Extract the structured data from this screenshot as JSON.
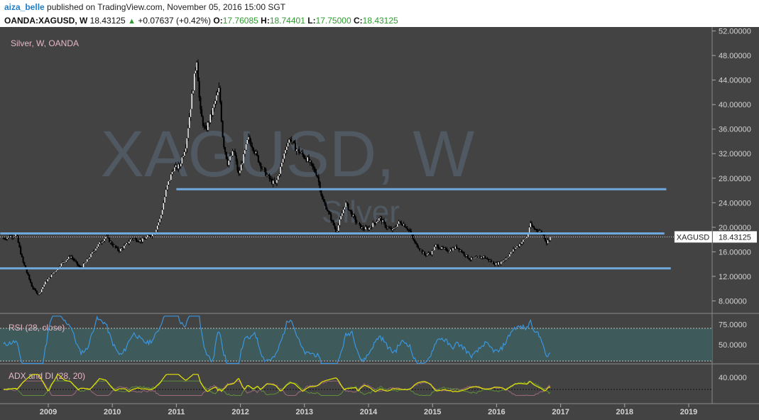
{
  "header": {
    "username": "aiza_belle",
    "published_text": "published on TradingView.com, November 05, 2016 15:00 SGT",
    "symbol": "OANDA:XAGUSD, W",
    "last": "18.43125",
    "change": "+0.07637 (+0.42%)",
    "o_label": "O:",
    "o_value": "17.76085",
    "h_label": "H:",
    "h_value": "18.74401",
    "l_label": "L:",
    "l_value": "17.75000",
    "c_label": "C:",
    "c_value": "18.43125"
  },
  "main_pane": {
    "title": "Silver, W, OANDA",
    "watermark_main": "XAGUSD, W",
    "watermark_sub": "Silver",
    "last_price_tag": "18.43125",
    "symbol_tag": "XAGUSD"
  },
  "rsi_pane": {
    "title": "RSI (28, close)"
  },
  "adx_pane": {
    "title": "ADX and DI (28, 20)"
  },
  "colors": {
    "background": "#434343",
    "up_candle": "#ffffff",
    "down_candle": "#000000",
    "support_lines": "#6fa8dc",
    "rsi_line": "#3a96dd",
    "rsi_band": "#3e5a5b",
    "adx_line": "#e5e500",
    "di_plus": "#5f8f3a",
    "di_minus": "#9b6a7a",
    "axis_text": "#d3d3d3"
  },
  "chart_data": {
    "type": "candlestick",
    "x_axis_labels": [
      "2009",
      "2010",
      "2011",
      "2012",
      "2013",
      "2014",
      "2015",
      "2016",
      "2017",
      "2018",
      "2019"
    ],
    "price_axis": {
      "ticks": [
        "52.00000",
        "48.00000",
        "44.00000",
        "40.00000",
        "36.00000",
        "32.00000",
        "28.00000",
        "24.00000",
        "20.00000",
        "16.00000",
        "12.00000",
        "8.00000"
      ],
      "range": [
        5.5,
        52.3
      ]
    },
    "price_path": [
      [
        2008.3,
        18.2
      ],
      [
        2008.5,
        18.8
      ],
      [
        2008.6,
        14.5
      ],
      [
        2008.75,
        10.2
      ],
      [
        2008.85,
        9.0
      ],
      [
        2008.95,
        11.0
      ],
      [
        2009.1,
        12.8
      ],
      [
        2009.2,
        14.0
      ],
      [
        2009.35,
        15.3
      ],
      [
        2009.5,
        13.3
      ],
      [
        2009.6,
        14.5
      ],
      [
        2009.75,
        16.8
      ],
      [
        2009.9,
        18.5
      ],
      [
        2010.0,
        17.2
      ],
      [
        2010.1,
        16.2
      ],
      [
        2010.2,
        17.0
      ],
      [
        2010.3,
        18.2
      ],
      [
        2010.45,
        17.8
      ],
      [
        2010.55,
        18.5
      ],
      [
        2010.65,
        19.0
      ],
      [
        2010.75,
        21.5
      ],
      [
        2010.85,
        26.5
      ],
      [
        2010.95,
        29.5
      ],
      [
        2011.05,
        30.0
      ],
      [
        2011.15,
        33.5
      ],
      [
        2011.25,
        42.0
      ],
      [
        2011.32,
        47.5
      ],
      [
        2011.37,
        39.0
      ],
      [
        2011.45,
        35.5
      ],
      [
        2011.55,
        38.5
      ],
      [
        2011.62,
        41.0
      ],
      [
        2011.67,
        42.5
      ],
      [
        2011.73,
        34.0
      ],
      [
        2011.8,
        30.5
      ],
      [
        2011.9,
        32.5
      ],
      [
        2011.97,
        28.5
      ],
      [
        2012.05,
        31.5
      ],
      [
        2012.12,
        34.5
      ],
      [
        2012.2,
        33.0
      ],
      [
        2012.3,
        30.5
      ],
      [
        2012.38,
        29.0
      ],
      [
        2012.48,
        27.5
      ],
      [
        2012.55,
        27.0
      ],
      [
        2012.65,
        30.5
      ],
      [
        2012.72,
        33.5
      ],
      [
        2012.78,
        34.5
      ],
      [
        2012.85,
        33.0
      ],
      [
        2012.95,
        32.0
      ],
      [
        2013.05,
        31.0
      ],
      [
        2013.1,
        30.2
      ],
      [
        2013.2,
        28.5
      ],
      [
        2013.28,
        24.5
      ],
      [
        2013.35,
        23.0
      ],
      [
        2013.45,
        20.5
      ],
      [
        2013.5,
        19.3
      ],
      [
        2013.58,
        22.0
      ],
      [
        2013.64,
        24.0
      ],
      [
        2013.72,
        22.5
      ],
      [
        2013.8,
        21.0
      ],
      [
        2013.9,
        19.8
      ],
      [
        2014.0,
        19.8
      ],
      [
        2014.1,
        20.8
      ],
      [
        2014.18,
        21.5
      ],
      [
        2014.28,
        20.0
      ],
      [
        2014.38,
        19.5
      ],
      [
        2014.47,
        20.8
      ],
      [
        2014.55,
        20.5
      ],
      [
        2014.65,
        19.3
      ],
      [
        2014.72,
        17.5
      ],
      [
        2014.8,
        16.5
      ],
      [
        2014.88,
        15.5
      ],
      [
        2014.98,
        15.8
      ],
      [
        2015.05,
        17.0
      ],
      [
        2015.15,
        16.5
      ],
      [
        2015.25,
        16.2
      ],
      [
        2015.38,
        16.8
      ],
      [
        2015.48,
        15.8
      ],
      [
        2015.58,
        14.8
      ],
      [
        2015.7,
        15.0
      ],
      [
        2015.8,
        15.2
      ],
      [
        2015.9,
        14.5
      ],
      [
        2015.98,
        14.0
      ],
      [
        2016.05,
        14.2
      ],
      [
        2016.15,
        15.0
      ],
      [
        2016.28,
        16.5
      ],
      [
        2016.38,
        17.5
      ],
      [
        2016.48,
        18.5
      ],
      [
        2016.52,
        20.5
      ],
      [
        2016.58,
        19.8
      ],
      [
        2016.65,
        19.5
      ],
      [
        2016.72,
        19.0
      ],
      [
        2016.78,
        17.5
      ],
      [
        2016.84,
        18.43
      ]
    ],
    "support_lines": [
      {
        "from": 2011.0,
        "to": 2018.65,
        "value": 26.2
      },
      {
        "from": 2008.25,
        "to": 2018.62,
        "value": 19.0
      },
      {
        "from": 2008.0,
        "to": 2018.72,
        "value": 13.3
      }
    ],
    "rsi": {
      "ticks": [
        "75.0000",
        "50.0000"
      ],
      "levels": [
        70,
        30
      ]
    },
    "adx": {
      "ticks": [
        "40.0000"
      ],
      "reference_level": 20
    }
  }
}
